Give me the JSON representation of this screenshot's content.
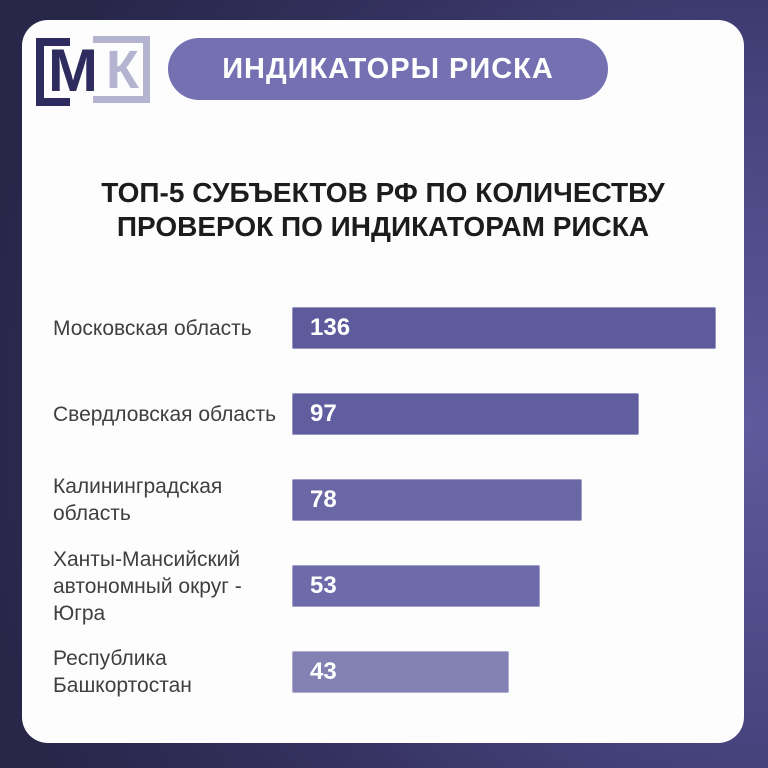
{
  "header": {
    "logo": {
      "letter_m": "М",
      "letter_k": "К"
    },
    "badge": "ИНДИКАТОРЫ РИСКА"
  },
  "title_lines": [
    "ТОП-5 СУБЪЕКТОВ РФ ПО КОЛИЧЕСТВУ",
    "ПРОВЕРОК ПО ИНДИКАТОРАМ РИСКА"
  ],
  "chart_data": {
    "type": "bar",
    "orientation": "horizontal",
    "title": "ТОП-5 СУБЪЕКТОВ РФ ПО КОЛИЧЕСТВУ ПРОВЕРОК ПО ИНДИКАТОРАМ РИСКА",
    "categories": [
      "Московская область",
      "Свердловская область",
      "Калининградская область",
      "Ханты-Мансийский автономный округ - Югра",
      "Республика Башкортостан"
    ],
    "values": [
      136,
      97,
      78,
      53,
      43
    ],
    "value_labels_inside_bars": true,
    "grid": false,
    "legend": false,
    "rows": [
      {
        "label": "Московская область",
        "value": "136",
        "width_pct": 100,
        "color": "#5e5b9d"
      },
      {
        "label": "Свердловская область",
        "value": "97",
        "width_pct": 81.8,
        "color": "#615ea0"
      },
      {
        "label": "Калининградская область",
        "value": "78",
        "width_pct": 68.4,
        "color": "#6a67a6"
      },
      {
        "label": "Ханты-Мансийский автономный округ - Югра",
        "value": "53",
        "width_pct": 58.5,
        "color": "#6e6bab"
      },
      {
        "label": "Республика Башкортостан",
        "value": "43",
        "width_pct": 51.2,
        "color": "#8381b4"
      }
    ]
  },
  "colors": {
    "background_dark": "#282649",
    "background_purple": "#5e5b9c",
    "card": "#fdfdfe",
    "badge_pill": "#7470b2",
    "logo_dark": "#2e2b5f",
    "logo_light": "#b4b4d0",
    "title_text": "#1c1c1c",
    "label_text": "#3f3f3f",
    "bar_value_text": "#ffffff"
  }
}
